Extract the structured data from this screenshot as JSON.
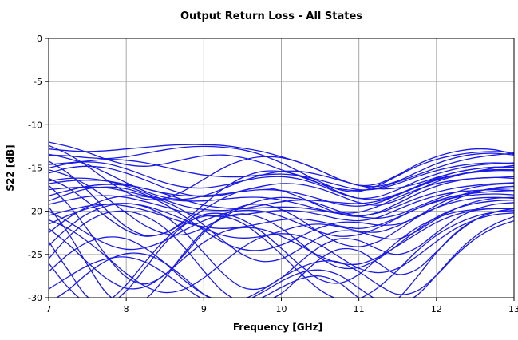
{
  "chart_data": {
    "type": "line",
    "title": "Output Return Loss - All States",
    "xlabel": "Frequency [GHz]",
    "ylabel": "S22 [dB]",
    "xlim": [
      7,
      13
    ],
    "ylim": [
      -30,
      0
    ],
    "xticks": [
      "7",
      "8",
      "9",
      "10",
      "11",
      "12",
      "13"
    ],
    "yticks": [
      "0",
      "-5",
      "-10",
      "-15",
      "-20",
      "-25",
      "-30"
    ],
    "grid": true,
    "legend": "none",
    "line_color": "#1a1ae6",
    "x": [
      7.0,
      7.25,
      7.5,
      7.75,
      8.0,
      8.25,
      8.5,
      8.75,
      9.0,
      9.25,
      9.5,
      9.75,
      10.0,
      10.25,
      10.5,
      10.75,
      11.0,
      11.25,
      11.5,
      11.75,
      12.0,
      12.25,
      12.5,
      12.75,
      13.0
    ],
    "series": [
      {
        "values": [
          -12.0,
          -12.5,
          -13.2,
          -14.0,
          -14.6,
          -14.8,
          -14.5,
          -14.0,
          -13.6,
          -13.5,
          -13.8,
          -14.4,
          -15.2,
          -16.0,
          -16.8,
          -17.4,
          -17.6,
          -17.3,
          -16.6,
          -15.8,
          -15.0,
          -14.3,
          -13.8,
          -13.5,
          -13.3
        ]
      },
      {
        "values": [
          -12.8,
          -13.0,
          -13.1,
          -13.0,
          -12.8,
          -12.6,
          -12.4,
          -12.3,
          -12.3,
          -12.4,
          -12.7,
          -13.1,
          -13.7,
          -14.4,
          -15.3,
          -16.3,
          -17.0,
          -16.8,
          -15.8,
          -14.6,
          -13.7,
          -13.1,
          -12.8,
          -12.9,
          -13.4
        ]
      },
      {
        "values": [
          -13.5,
          -13.6,
          -13.8,
          -13.9,
          -13.7,
          -13.3,
          -12.9,
          -12.6,
          -12.5,
          -12.6,
          -12.9,
          -13.5,
          -14.4,
          -15.5,
          -16.6,
          -17.5,
          -17.7,
          -17.0,
          -15.9,
          -14.8,
          -14.0,
          -13.5,
          -13.2,
          -13.1,
          -13.2
        ]
      },
      {
        "values": [
          -14.6,
          -14.4,
          -14.2,
          -14.0,
          -14.1,
          -14.4,
          -14.9,
          -15.4,
          -15.8,
          -16.0,
          -16.0,
          -15.8,
          -15.7,
          -15.9,
          -16.4,
          -17.0,
          -17.5,
          -17.4,
          -16.8,
          -16.0,
          -15.3,
          -14.8,
          -14.5,
          -14.4,
          -14.5
        ]
      },
      {
        "values": [
          -15.0,
          -14.5,
          -14.3,
          -14.5,
          -15.1,
          -15.9,
          -16.7,
          -17.2,
          -17.3,
          -17.0,
          -16.5,
          -16.1,
          -16.0,
          -16.3,
          -17.0,
          -17.9,
          -18.5,
          -18.3,
          -17.5,
          -16.5,
          -15.7,
          -15.1,
          -14.7,
          -14.5,
          -14.4
        ]
      },
      {
        "values": [
          -15.6,
          -15.0,
          -14.8,
          -15.0,
          -15.6,
          -16.4,
          -17.3,
          -18.0,
          -18.3,
          -18.1,
          -17.6,
          -17.1,
          -16.8,
          -16.9,
          -17.4,
          -18.2,
          -19.0,
          -19.3,
          -18.7,
          -17.6,
          -16.6,
          -15.9,
          -15.4,
          -15.0,
          -14.7
        ]
      },
      {
        "values": [
          -16.8,
          -16.5,
          -16.4,
          -16.5,
          -16.9,
          -17.4,
          -17.9,
          -18.2,
          -18.2,
          -18.0,
          -17.7,
          -17.5,
          -17.6,
          -18.0,
          -18.6,
          -19.2,
          -19.4,
          -19.0,
          -18.1,
          -17.1,
          -16.3,
          -15.8,
          -15.5,
          -15.3,
          -15.3
        ]
      },
      {
        "values": [
          -17.5,
          -17.3,
          -17.2,
          -17.3,
          -17.7,
          -18.2,
          -18.6,
          -18.8,
          -18.8,
          -18.6,
          -18.4,
          -18.4,
          -18.7,
          -19.2,
          -19.8,
          -20.2,
          -20.1,
          -19.4,
          -18.4,
          -17.5,
          -16.8,
          -16.4,
          -16.2,
          -16.1,
          -16.0
        ]
      },
      {
        "values": [
          -18.2,
          -17.6,
          -17.1,
          -16.9,
          -17.0,
          -17.4,
          -18.0,
          -18.7,
          -19.3,
          -19.6,
          -19.7,
          -19.6,
          -19.5,
          -19.6,
          -19.9,
          -20.3,
          -20.5,
          -20.2,
          -19.4,
          -18.5,
          -17.8,
          -17.3,
          -17.0,
          -16.8,
          -16.7
        ]
      },
      {
        "values": [
          -19.2,
          -18.7,
          -18.3,
          -18.2,
          -18.4,
          -18.9,
          -19.5,
          -20.1,
          -20.5,
          -20.6,
          -20.4,
          -20.1,
          -19.9,
          -20.0,
          -20.4,
          -20.9,
          -21.1,
          -20.7,
          -19.8,
          -18.9,
          -18.2,
          -17.8,
          -17.6,
          -17.5,
          -17.6
        ]
      },
      {
        "values": [
          -20.5,
          -19.9,
          -19.4,
          -19.2,
          -19.4,
          -19.9,
          -20.6,
          -21.3,
          -21.8,
          -22.0,
          -21.8,
          -21.4,
          -21.0,
          -20.9,
          -21.2,
          -21.7,
          -22.0,
          -21.6,
          -20.7,
          -19.7,
          -18.9,
          -18.4,
          -18.1,
          -18.0,
          -18.1
        ]
      },
      {
        "values": [
          -21.5,
          -20.5,
          -19.7,
          -19.2,
          -19.1,
          -19.4,
          -20.1,
          -21.0,
          -22.0,
          -22.8,
          -23.1,
          -22.9,
          -22.3,
          -21.7,
          -21.5,
          -21.8,
          -22.3,
          -22.4,
          -21.7,
          -20.6,
          -19.6,
          -18.9,
          -18.5,
          -18.4,
          -18.5
        ]
      },
      {
        "values": [
          -22.5,
          -20.8,
          -19.5,
          -18.6,
          -18.2,
          -18.3,
          -18.9,
          -20.0,
          -21.6,
          -23.4,
          -25.0,
          -25.8,
          -25.5,
          -24.3,
          -23.0,
          -22.3,
          -22.4,
          -23.0,
          -23.2,
          -22.3,
          -20.9,
          -19.7,
          -18.9,
          -18.5,
          -18.4
        ]
      },
      {
        "values": [
          -24.0,
          -21.9,
          -20.3,
          -19.4,
          -19.1,
          -19.5,
          -20.6,
          -22.4,
          -24.8,
          -27.2,
          -28.8,
          -28.9,
          -27.7,
          -25.8,
          -24.1,
          -23.2,
          -23.4,
          -24.4,
          -25.0,
          -24.2,
          -22.5,
          -20.9,
          -19.8,
          -19.2,
          -19.0
        ]
      },
      {
        "values": [
          -25.5,
          -23.0,
          -21.2,
          -20.2,
          -20.0,
          -20.6,
          -22.0,
          -24.2,
          -26.9,
          -29.3,
          -30.5,
          -30.5,
          -29.5,
          -27.5,
          -25.5,
          -24.4,
          -24.6,
          -26.0,
          -27.3,
          -26.7,
          -24.7,
          -22.6,
          -21.0,
          -20.1,
          -19.7
        ]
      },
      {
        "values": [
          -27.0,
          -25.0,
          -23.6,
          -23.0,
          -23.2,
          -24.3,
          -26.0,
          -28.0,
          -29.6,
          -30.4,
          -30.2,
          -29.1,
          -27.7,
          -26.5,
          -25.8,
          -25.9,
          -27.0,
          -28.5,
          -29.6,
          -29.2,
          -27.4,
          -25.1,
          -23.2,
          -21.9,
          -21.1
        ]
      },
      {
        "values": [
          -29.0,
          -27.6,
          -26.3,
          -25.5,
          -25.3,
          -25.9,
          -27.2,
          -28.8,
          -30.2,
          -30.8,
          -30.5,
          -29.4,
          -28.1,
          -27.1,
          -26.8,
          -27.4,
          -28.9,
          -30.3,
          -30.8,
          -29.7,
          -27.4,
          -24.9,
          -22.9,
          -21.5,
          -20.6
        ]
      },
      {
        "values": [
          -30.6,
          -29.1,
          -27.2,
          -25.7,
          -24.9,
          -25.0,
          -26.0,
          -27.7,
          -29.6,
          -30.8,
          -30.9,
          -30.0,
          -28.8,
          -27.8,
          -27.5,
          -28.3,
          -30.0,
          -30.9,
          -30.1,
          -27.6,
          -24.8,
          -22.5,
          -21.0,
          -20.1,
          -19.7
        ]
      },
      {
        "values": [
          -18.8,
          -18.0,
          -17.4,
          -17.2,
          -17.4,
          -18.1,
          -19.2,
          -20.6,
          -22.2,
          -23.6,
          -24.4,
          -24.5,
          -23.9,
          -22.9,
          -21.9,
          -21.3,
          -21.3,
          -21.6,
          -21.5,
          -20.7,
          -19.6,
          -18.6,
          -17.8,
          -17.3,
          -17.1
        ]
      },
      {
        "values": [
          -20.0,
          -21.2,
          -22.6,
          -23.8,
          -24.4,
          -24.2,
          -23.4,
          -22.2,
          -21.1,
          -20.3,
          -19.9,
          -20.0,
          -20.6,
          -21.5,
          -22.4,
          -22.9,
          -22.7,
          -21.9,
          -20.8,
          -19.7,
          -18.8,
          -18.2,
          -17.9,
          -17.7,
          -17.6
        ]
      },
      {
        "values": [
          -16.2,
          -17.3,
          -18.9,
          -20.7,
          -22.2,
          -22.9,
          -22.5,
          -21.3,
          -19.8,
          -18.5,
          -17.6,
          -17.3,
          -17.6,
          -18.4,
          -19.4,
          -20.3,
          -20.6,
          -20.1,
          -19.1,
          -18.0,
          -17.1,
          -16.5,
          -16.2,
          -16.1,
          -16.2
        ]
      },
      {
        "values": [
          -14.2,
          -15.6,
          -17.6,
          -19.9,
          -21.8,
          -22.8,
          -22.5,
          -21.1,
          -19.2,
          -17.4,
          -16.1,
          -15.4,
          -15.4,
          -15.9,
          -16.8,
          -17.8,
          -18.5,
          -18.6,
          -18.0,
          -17.1,
          -16.2,
          -15.5,
          -15.1,
          -14.9,
          -14.9
        ]
      },
      {
        "values": [
          -17.0,
          -19.2,
          -22.1,
          -25.2,
          -27.6,
          -28.4,
          -27.3,
          -25.0,
          -22.5,
          -20.5,
          -19.4,
          -19.2,
          -19.8,
          -21.0,
          -22.5,
          -23.7,
          -24.1,
          -23.5,
          -22.2,
          -20.7,
          -19.3,
          -18.3,
          -17.7,
          -17.4,
          -17.3
        ]
      },
      {
        "values": [
          -19.5,
          -22.5,
          -26.2,
          -29.5,
          -30.8,
          -30.1,
          -27.7,
          -24.8,
          -22.3,
          -20.8,
          -20.3,
          -20.8,
          -22.0,
          -23.7,
          -25.4,
          -26.5,
          -26.5,
          -25.5,
          -23.9,
          -22.2,
          -20.7,
          -19.7,
          -19.1,
          -18.8,
          -18.7
        ]
      },
      {
        "values": [
          -23.5,
          -26.8,
          -29.9,
          -30.8,
          -29.2,
          -26.5,
          -23.7,
          -21.6,
          -20.4,
          -20.3,
          -21.0,
          -22.4,
          -24.3,
          -26.3,
          -27.9,
          -28.3,
          -27.3,
          -25.4,
          -23.5,
          -21.9,
          -20.8,
          -20.1,
          -19.8,
          -19.7,
          -19.7
        ]
      },
      {
        "values": [
          -15.2,
          -15.9,
          -17.0,
          -18.5,
          -20.2,
          -21.7,
          -22.6,
          -22.7,
          -21.9,
          -20.7,
          -19.5,
          -18.7,
          -18.4,
          -18.6,
          -19.2,
          -20.0,
          -20.6,
          -20.8,
          -20.4,
          -19.5,
          -18.6,
          -17.8,
          -17.2,
          -16.9,
          -16.8
        ]
      },
      {
        "values": [
          -13.4,
          -13.9,
          -14.6,
          -15.6,
          -16.7,
          -17.7,
          -18.4,
          -18.6,
          -18.2,
          -17.4,
          -16.5,
          -15.8,
          -15.4,
          -15.4,
          -15.8,
          -16.4,
          -17.0,
          -17.4,
          -17.3,
          -16.8,
          -16.1,
          -15.5,
          -15.1,
          -14.9,
          -14.9
        ]
      },
      {
        "values": [
          -26.0,
          -28.8,
          -30.6,
          -30.4,
          -28.5,
          -25.8,
          -23.3,
          -21.5,
          -20.6,
          -20.6,
          -21.4,
          -23.0,
          -25.0,
          -27.2,
          -29.1,
          -30.2,
          -30.1,
          -28.8,
          -26.8,
          -24.6,
          -22.8,
          -21.5,
          -20.6,
          -20.1,
          -19.9
        ]
      },
      {
        "values": [
          -21.0,
          -22.0,
          -23.5,
          -25.3,
          -27.2,
          -28.7,
          -29.4,
          -29.0,
          -27.7,
          -25.9,
          -24.2,
          -23.0,
          -22.6,
          -22.9,
          -23.9,
          -25.3,
          -26.6,
          -27.1,
          -26.6,
          -25.2,
          -23.5,
          -22.0,
          -21.0,
          -20.4,
          -20.2
        ]
      },
      {
        "values": [
          -16.5,
          -16.2,
          -16.2,
          -16.5,
          -17.1,
          -17.9,
          -18.7,
          -19.4,
          -19.8,
          -19.9,
          -19.7,
          -19.3,
          -18.9,
          -18.7,
          -18.8,
          -19.0,
          -19.1,
          -18.8,
          -18.1,
          -17.2,
          -16.4,
          -15.8,
          -15.4,
          -15.2,
          -15.2
        ]
      },
      {
        "values": [
          -22.0,
          -23.8,
          -25.9,
          -27.8,
          -28.9,
          -28.7,
          -27.3,
          -25.4,
          -23.6,
          -22.4,
          -21.9,
          -22.1,
          -22.9,
          -24.0,
          -25.2,
          -26.0,
          -26.1,
          -25.3,
          -24.0,
          -22.6,
          -21.3,
          -20.4,
          -19.9,
          -19.7,
          -19.7
        ]
      },
      {
        "values": [
          -12.4,
          -13.4,
          -14.8,
          -16.4,
          -17.8,
          -18.6,
          -18.5,
          -17.6,
          -16.3,
          -15.0,
          -14.1,
          -13.7,
          -13.8,
          -14.4,
          -15.3,
          -16.3,
          -17.0,
          -17.1,
          -16.5,
          -15.5,
          -14.5,
          -13.8,
          -13.4,
          -13.3,
          -13.5
        ]
      }
    ]
  }
}
